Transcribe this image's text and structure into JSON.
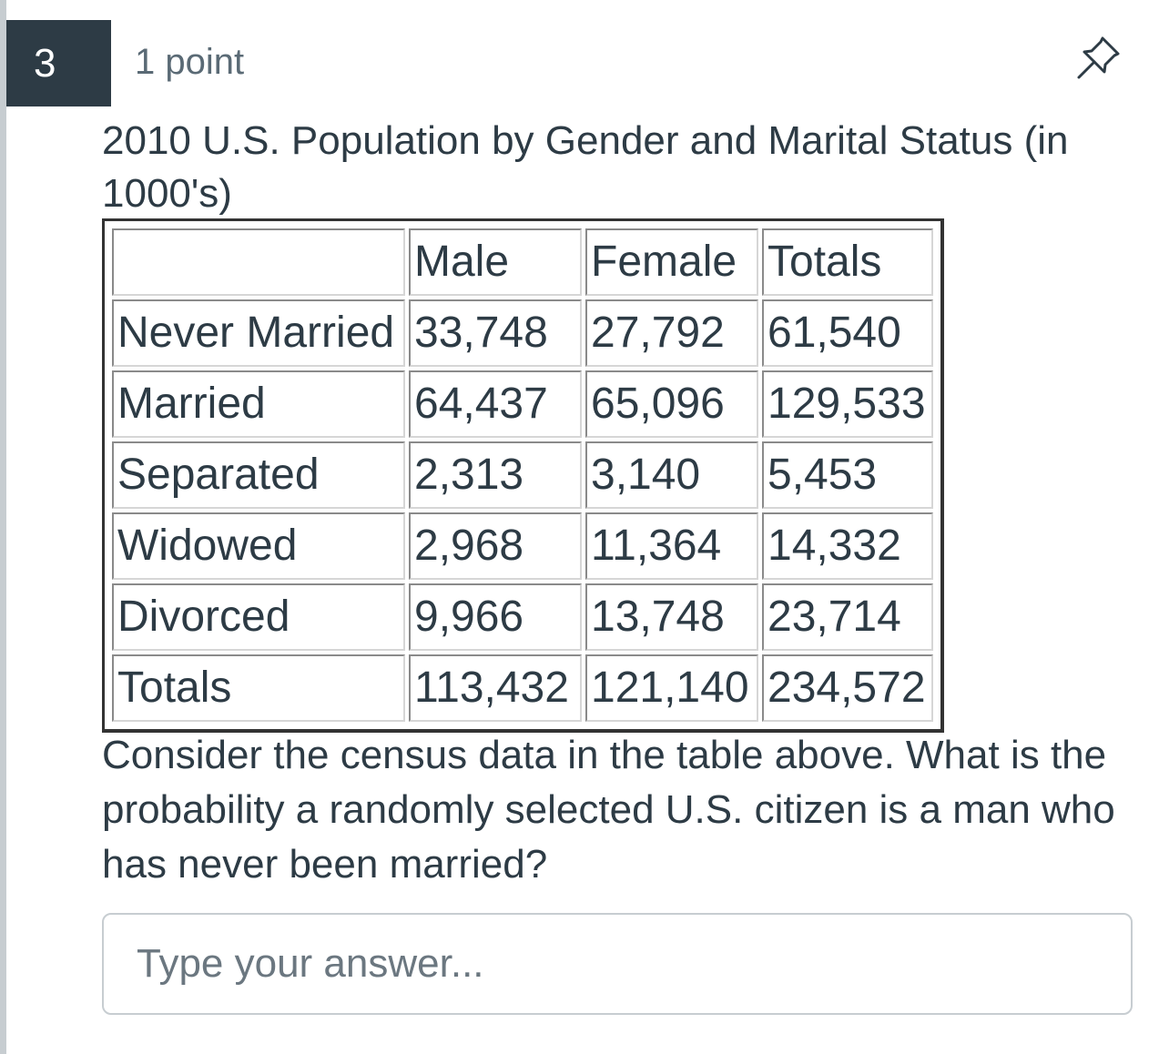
{
  "question": {
    "number": "3",
    "points": "1 point",
    "pin_icon": "pin-icon",
    "title": "2010 U.S. Population by Gender and Marital Status (in 1000's)",
    "table": {
      "header": [
        "",
        "Male",
        "Female",
        "Totals"
      ],
      "rows": [
        [
          "Never Married",
          "33,748",
          "27,792",
          "61,540"
        ],
        [
          "Married",
          "64,437",
          "65,096",
          "129,533"
        ],
        [
          "Separated",
          "2,313",
          "3,140",
          "5,453"
        ],
        [
          "Widowed",
          "2,968",
          "11,364",
          "14,332"
        ],
        [
          "Divorced",
          "9,966",
          "13,748",
          "23,714"
        ],
        [
          "Totals",
          "113,432",
          "121,140",
          "234,572"
        ]
      ]
    },
    "prompt": "Consider the census data in the table above. What is the probability a randomly selected U.S. citizen is a man who has never been married?",
    "answer": {
      "value": "",
      "placeholder": "Type your answer..."
    }
  }
}
